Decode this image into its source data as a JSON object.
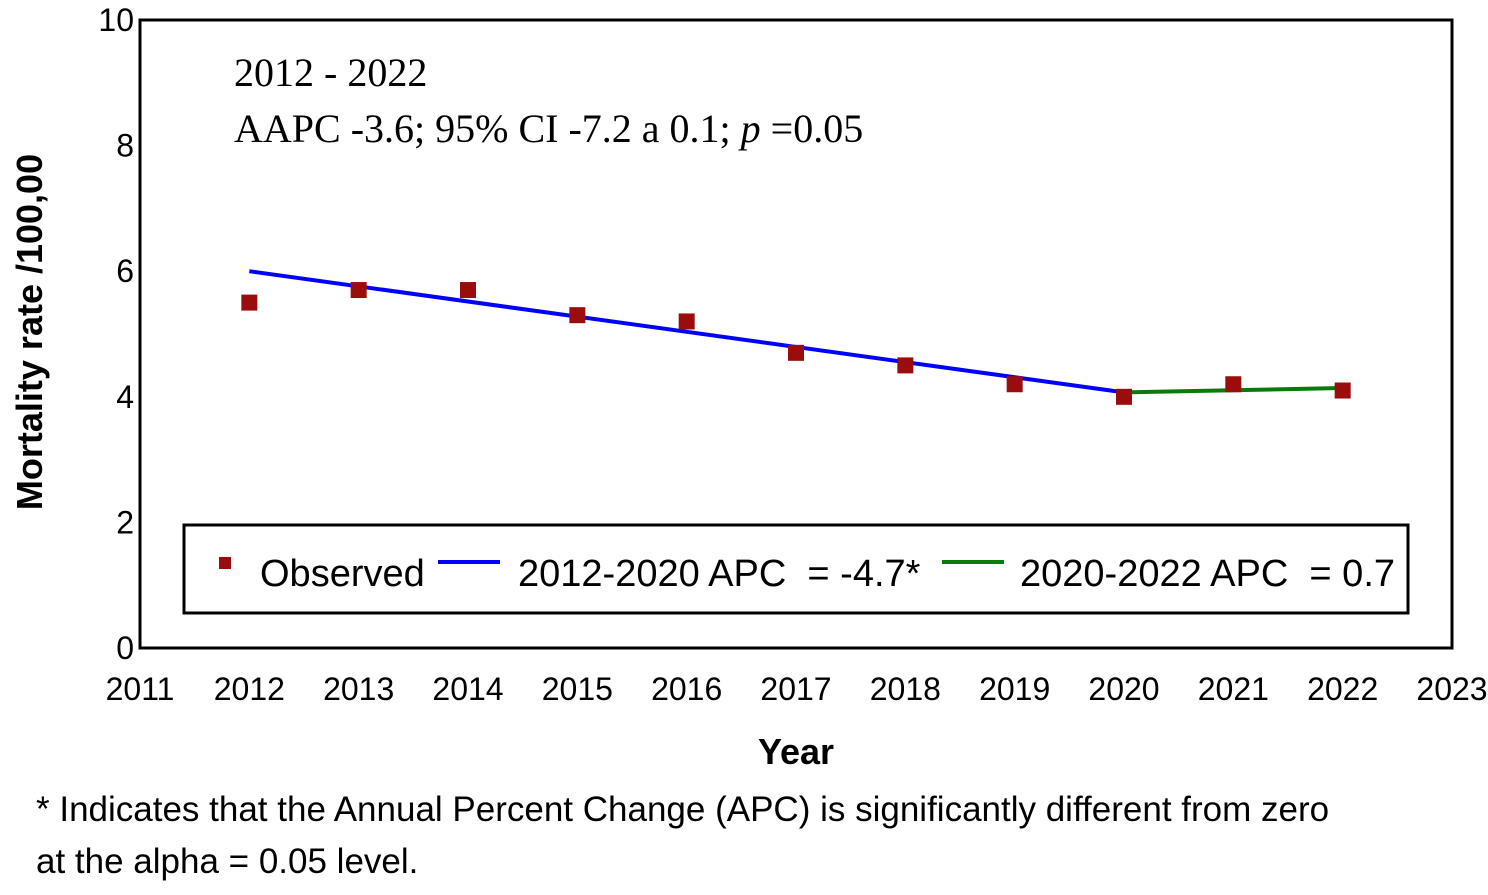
{
  "chart_data": {
    "type": "line",
    "annotation": {
      "line1": "2012 - 2022",
      "aapc_label": "AAPC -3.6; 95% CI -7.2 a 0.1; ",
      "p_label": "p",
      "p_value": " =0.05"
    },
    "xlabel": "Year",
    "ylabel": "Mortality rate /100,00",
    "xlim": [
      2011,
      2023
    ],
    "ylim": [
      0,
      10
    ],
    "x_ticks": [
      "2011",
      "2012",
      "2013",
      "2014",
      "2015",
      "2016",
      "2017",
      "2018",
      "2019",
      "2020",
      "2021",
      "2022",
      "2023"
    ],
    "y_ticks": [
      "0",
      "2",
      "4",
      "6",
      "8",
      "10"
    ],
    "series": [
      {
        "name": "Observed",
        "kind": "scatter",
        "color": "#9b0d0d",
        "x": [
          2012,
          2013,
          2014,
          2015,
          2016,
          2017,
          2018,
          2019,
          2020,
          2021,
          2022
        ],
        "values": [
          5.5,
          5.7,
          5.7,
          5.3,
          5.2,
          4.7,
          4.5,
          4.2,
          4.0,
          4.2,
          4.1
        ]
      },
      {
        "name": "2012-2020 APC  = -4.7*",
        "kind": "line",
        "color": "#0000ff",
        "x": [
          2012,
          2020
        ],
        "values": [
          6.0,
          4.07
        ]
      },
      {
        "name": "2020-2022 APC  = 0.7",
        "kind": "line",
        "color": "#0a7a0a",
        "x": [
          2020,
          2022
        ],
        "values": [
          4.07,
          4.14
        ]
      }
    ],
    "legend_position": "bottom-inside",
    "footnote": [
      "* Indicates that the Annual Percent Change (APC) is significantly different from zero",
      "at the alpha = 0.05 level."
    ]
  }
}
